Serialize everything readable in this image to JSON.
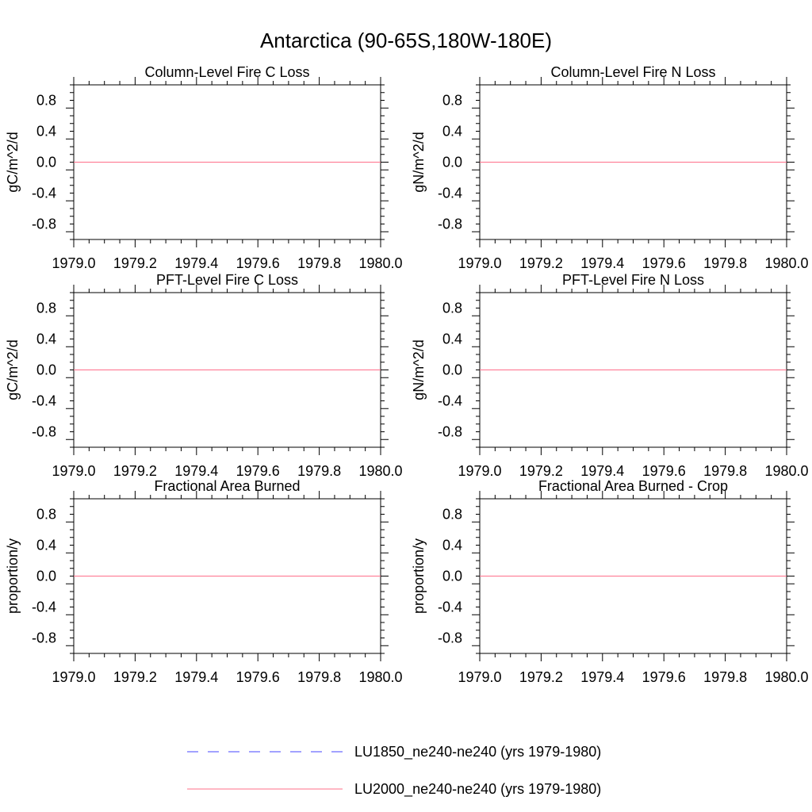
{
  "figure_title": "Antarctica (90-65S,180W-180E)",
  "colors": {
    "series_1": "#4444ff",
    "series_2": "#ff6f8a",
    "axis": "#000000"
  },
  "legend": {
    "items": [
      {
        "label": "LU1850_ne240-ne240 (yrs 1979-1980)",
        "style": "dashed",
        "color": "#4444ff"
      },
      {
        "label": "LU2000_ne240-ne240 (yrs 1979-1980)",
        "style": "solid",
        "color": "#ff6f8a"
      }
    ]
  },
  "chart_data": [
    {
      "type": "line",
      "title": "Column-Level Fire C Loss",
      "xlabel": "",
      "ylabel": "gC/m^2/d",
      "xlim": [
        1979.0,
        1980.0
      ],
      "ylim": [
        -1.0,
        1.0
      ],
      "xticks": [
        "1979.0",
        "1979.2",
        "1979.4",
        "1979.6",
        "1979.8",
        "1980.0"
      ],
      "yticks": [
        "0.8",
        "0.4",
        "0.0",
        "-0.4",
        "-0.8"
      ],
      "series": [
        {
          "name": "LU1850_ne240-ne240 (yrs 1979-1980)",
          "x": [
            1979.0,
            1980.0
          ],
          "y": [
            0.0,
            0.0
          ]
        },
        {
          "name": "LU2000_ne240-ne240 (yrs 1979-1980)",
          "x": [
            1979.0,
            1980.0
          ],
          "y": [
            0.0,
            0.0
          ]
        }
      ]
    },
    {
      "type": "line",
      "title": "Column-Level Fire N Loss",
      "xlabel": "",
      "ylabel": "gN/m^2/d",
      "xlim": [
        1979.0,
        1980.0
      ],
      "ylim": [
        -1.0,
        1.0
      ],
      "xticks": [
        "1979.0",
        "1979.2",
        "1979.4",
        "1979.6",
        "1979.8",
        "1980.0"
      ],
      "yticks": [
        "0.8",
        "0.4",
        "0.0",
        "-0.4",
        "-0.8"
      ],
      "series": [
        {
          "name": "LU1850_ne240-ne240 (yrs 1979-1980)",
          "x": [
            1979.0,
            1980.0
          ],
          "y": [
            0.0,
            0.0
          ]
        },
        {
          "name": "LU2000_ne240-ne240 (yrs 1979-1980)",
          "x": [
            1979.0,
            1980.0
          ],
          "y": [
            0.0,
            0.0
          ]
        }
      ]
    },
    {
      "type": "line",
      "title": "PFT-Level Fire C Loss",
      "xlabel": "",
      "ylabel": "gC/m^2/d",
      "xlim": [
        1979.0,
        1980.0
      ],
      "ylim": [
        -1.0,
        1.0
      ],
      "xticks": [
        "1979.0",
        "1979.2",
        "1979.4",
        "1979.6",
        "1979.8",
        "1980.0"
      ],
      "yticks": [
        "0.8",
        "0.4",
        "0.0",
        "-0.4",
        "-0.8"
      ],
      "series": [
        {
          "name": "LU1850_ne240-ne240 (yrs 1979-1980)",
          "x": [
            1979.0,
            1980.0
          ],
          "y": [
            0.0,
            0.0
          ]
        },
        {
          "name": "LU2000_ne240-ne240 (yrs 1979-1980)",
          "x": [
            1979.0,
            1980.0
          ],
          "y": [
            0.0,
            0.0
          ]
        }
      ]
    },
    {
      "type": "line",
      "title": "PFT-Level Fire N Loss",
      "xlabel": "",
      "ylabel": "gN/m^2/d",
      "xlim": [
        1979.0,
        1980.0
      ],
      "ylim": [
        -1.0,
        1.0
      ],
      "xticks": [
        "1979.0",
        "1979.2",
        "1979.4",
        "1979.6",
        "1979.8",
        "1980.0"
      ],
      "yticks": [
        "0.8",
        "0.4",
        "0.0",
        "-0.4",
        "-0.8"
      ],
      "series": [
        {
          "name": "LU1850_ne240-ne240 (yrs 1979-1980)",
          "x": [
            1979.0,
            1980.0
          ],
          "y": [
            0.0,
            0.0
          ]
        },
        {
          "name": "LU2000_ne240-ne240 (yrs 1979-1980)",
          "x": [
            1979.0,
            1980.0
          ],
          "y": [
            0.0,
            0.0
          ]
        }
      ]
    },
    {
      "type": "line",
      "title": "Fractional Area Burned",
      "xlabel": "",
      "ylabel": "proportion/y",
      "xlim": [
        1979.0,
        1980.0
      ],
      "ylim": [
        -1.0,
        1.0
      ],
      "xticks": [
        "1979.0",
        "1979.2",
        "1979.4",
        "1979.6",
        "1979.8",
        "1980.0"
      ],
      "yticks": [
        "0.8",
        "0.4",
        "0.0",
        "-0.4",
        "-0.8"
      ],
      "series": [
        {
          "name": "LU1850_ne240-ne240 (yrs 1979-1980)",
          "x": [
            1979.0,
            1980.0
          ],
          "y": [
            0.0,
            0.0
          ]
        },
        {
          "name": "LU2000_ne240-ne240 (yrs 1979-1980)",
          "x": [
            1979.0,
            1980.0
          ],
          "y": [
            0.0,
            0.0
          ]
        }
      ]
    },
    {
      "type": "line",
      "title": "Fractional Area Burned - Crop",
      "xlabel": "",
      "ylabel": "proportion/y",
      "xlim": [
        1979.0,
        1980.0
      ],
      "ylim": [
        -1.0,
        1.0
      ],
      "xticks": [
        "1979.0",
        "1979.2",
        "1979.4",
        "1979.6",
        "1979.8",
        "1980.0"
      ],
      "yticks": [
        "0.8",
        "0.4",
        "0.0",
        "-0.4",
        "-0.8"
      ],
      "series": [
        {
          "name": "LU1850_ne240-ne240 (yrs 1979-1980)",
          "x": [
            1979.0,
            1980.0
          ],
          "y": [
            0.0,
            0.0
          ]
        },
        {
          "name": "LU2000_ne240-ne240 (yrs 1979-1980)",
          "x": [
            1979.0,
            1980.0
          ],
          "y": [
            0.0,
            0.0
          ]
        }
      ]
    }
  ]
}
